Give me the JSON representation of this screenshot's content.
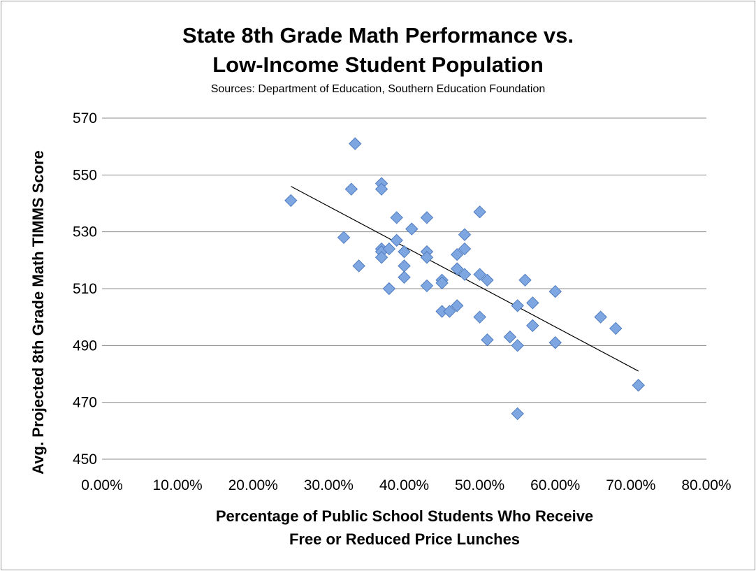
{
  "chart_data": {
    "type": "scatter",
    "title_lines": [
      "State 8th Grade Math Performance vs.",
      "Low-Income Student Population"
    ],
    "subtitle": "Sources: Department of Education, Southern Education Foundation",
    "xlabel_lines": [
      "Percentage of Public School Students Who Receive",
      "Free or Reduced Price Lunches"
    ],
    "ylabel": "Avg. Projected 8th Grade Math TIMMS Score",
    "xlim": [
      0,
      80
    ],
    "ylim": [
      450,
      570
    ],
    "x_ticks": [
      0,
      10,
      20,
      30,
      40,
      50,
      60,
      70,
      80
    ],
    "x_tick_labels": [
      "0.00%",
      "10.00%",
      "20.00%",
      "30.00%",
      "40.00%",
      "50.00%",
      "60.00%",
      "70.00%",
      "80.00%"
    ],
    "y_ticks": [
      450,
      470,
      490,
      510,
      530,
      550,
      570
    ],
    "y_tick_labels": [
      "450",
      "470",
      "490",
      "510",
      "530",
      "550",
      "570"
    ],
    "grid": "horizontal",
    "legend": "none",
    "marker_color": "#7ea6e0",
    "marker_edge_color": "#4f7cc1",
    "trendline": {
      "type": "linear",
      "from": [
        25,
        546
      ],
      "to": [
        71,
        481
      ],
      "color": "#000000"
    },
    "points": [
      {
        "x": 25,
        "y": 541
      },
      {
        "x": 32,
        "y": 528
      },
      {
        "x": 33,
        "y": 545
      },
      {
        "x": 33.5,
        "y": 561
      },
      {
        "x": 34,
        "y": 518
      },
      {
        "x": 37,
        "y": 547
      },
      {
        "x": 37,
        "y": 545
      },
      {
        "x": 37,
        "y": 524
      },
      {
        "x": 37,
        "y": 523
      },
      {
        "x": 37,
        "y": 521
      },
      {
        "x": 38,
        "y": 524
      },
      {
        "x": 38,
        "y": 510
      },
      {
        "x": 39,
        "y": 535
      },
      {
        "x": 39,
        "y": 527
      },
      {
        "x": 40,
        "y": 523
      },
      {
        "x": 40,
        "y": 518
      },
      {
        "x": 40,
        "y": 514
      },
      {
        "x": 41,
        "y": 531
      },
      {
        "x": 43,
        "y": 535
      },
      {
        "x": 43,
        "y": 523
      },
      {
        "x": 43,
        "y": 521
      },
      {
        "x": 43,
        "y": 511
      },
      {
        "x": 45,
        "y": 513
      },
      {
        "x": 45,
        "y": 512
      },
      {
        "x": 45,
        "y": 502
      },
      {
        "x": 46,
        "y": 502
      },
      {
        "x": 47,
        "y": 522
      },
      {
        "x": 47,
        "y": 517
      },
      {
        "x": 47,
        "y": 504
      },
      {
        "x": 48,
        "y": 529
      },
      {
        "x": 48,
        "y": 524
      },
      {
        "x": 48,
        "y": 515
      },
      {
        "x": 50,
        "y": 537
      },
      {
        "x": 50,
        "y": 515
      },
      {
        "x": 50,
        "y": 500
      },
      {
        "x": 51,
        "y": 513
      },
      {
        "x": 51,
        "y": 492
      },
      {
        "x": 54,
        "y": 493
      },
      {
        "x": 55,
        "y": 504
      },
      {
        "x": 55,
        "y": 490
      },
      {
        "x": 55,
        "y": 466
      },
      {
        "x": 56,
        "y": 513
      },
      {
        "x": 57,
        "y": 505
      },
      {
        "x": 57,
        "y": 497
      },
      {
        "x": 60,
        "y": 509
      },
      {
        "x": 60,
        "y": 491
      },
      {
        "x": 66,
        "y": 500
      },
      {
        "x": 68,
        "y": 496
      },
      {
        "x": 71,
        "y": 476
      }
    ]
  }
}
